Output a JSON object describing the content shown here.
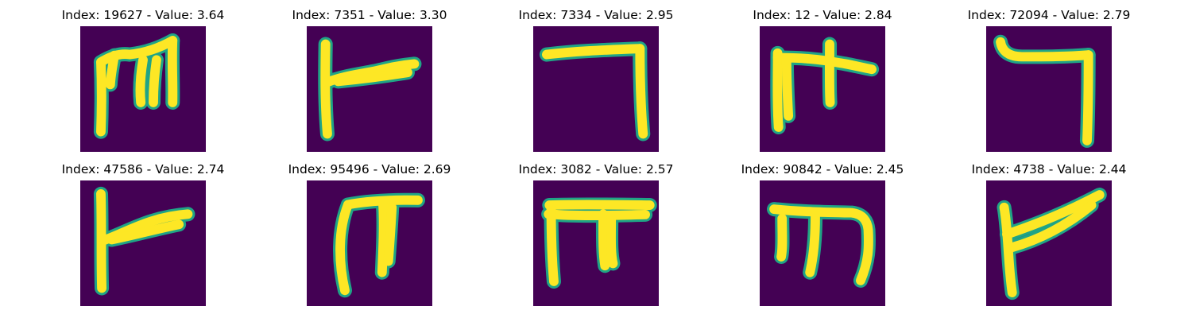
{
  "palette": {
    "background": "#440154",
    "edge": "#20a486",
    "stroke": "#fde725"
  },
  "panels": [
    {
      "title": "Index: 19627 - Value: 3.64",
      "glyph": "m-shape"
    },
    {
      "title": "Index: 7351 - Value: 3.30",
      "glyph": "flag-shape"
    },
    {
      "title": "Index: 7334 - Value: 2.95",
      "glyph": "hook-shape"
    },
    {
      "title": "Index: 12 - Value: 2.84",
      "glyph": "cross-shape"
    },
    {
      "title": "Index: 72094 - Value: 2.79",
      "glyph": "hook-shape"
    },
    {
      "title": "Index: 47586 - Value: 2.74",
      "glyph": "flag-shape"
    },
    {
      "title": "Index: 95496 - Value: 2.69",
      "glyph": "pi-shape"
    },
    {
      "title": "Index: 3082 - Value: 2.57",
      "glyph": "pi-shape"
    },
    {
      "title": "Index: 90842 - Value: 2.45",
      "glyph": "m-shape"
    },
    {
      "title": "Index: 4738 - Value: 2.44",
      "glyph": "flag-shape"
    }
  ]
}
